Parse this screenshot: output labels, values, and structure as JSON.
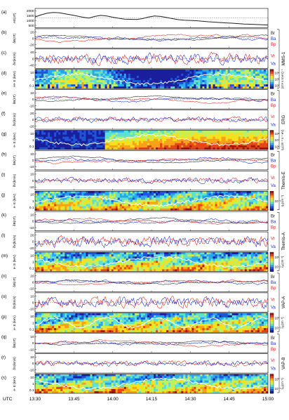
{
  "figure": {
    "x_axis": {
      "label": "UTC",
      "ticks": [
        "13:30",
        "13:45",
        "14:00",
        "14:15",
        "14:30",
        "14:45",
        "15:00"
      ],
      "range_min": [
        0,
        90
      ]
    },
    "mission_labels": [
      "MMS-1",
      "ERG",
      "Themis-E",
      "Themis-A",
      "VAP-A",
      "VAP-B"
    ],
    "colors": {
      "r": "#e8241c",
      "a": "#1c2fd8",
      "p": "#222222",
      "white": "#ffffff"
    }
  },
  "chart_data": [
    {
      "id": "a",
      "letter": "(a)",
      "type": "line",
      "ylabel": "AE(nT)",
      "yticks": [
        "2000",
        "1500",
        "1000",
        "500"
      ],
      "ylim": [
        400,
        2200
      ],
      "series": [
        {
          "name": "AE",
          "values": [
            1400,
            1600,
            1750,
            1820,
            1800,
            1700,
            1600,
            1500,
            1380,
            1300,
            1450,
            1550,
            1500,
            1380,
            1280,
            1200,
            1180,
            1160,
            1250,
            1400,
            1500,
            1450,
            1350,
            1250,
            1150,
            1100,
            1080,
            1050,
            1000,
            950,
            920,
            880,
            850,
            820,
            780,
            740,
            720,
            700,
            680,
            650
          ]
        }
      ]
    },
    {
      "id": "b",
      "letter": "(b)",
      "type": "line",
      "ylabel": "δB(nT)",
      "yticks": [
        "20",
        "0",
        "-20"
      ],
      "ylim": [
        -30,
        30
      ],
      "legend": [
        "Br",
        "Ba",
        "Bp"
      ]
    },
    {
      "id": "c",
      "letter": "(c)",
      "type": "line",
      "ylabel": "δV(km/s)",
      "yticks": [
        "40",
        "0",
        "-40"
      ],
      "ylim": [
        -60,
        60
      ],
      "legend": [
        "Vr",
        "Va"
      ]
    },
    {
      "id": "d",
      "letter": "(d)",
      "type": "heatmap",
      "ylabel": "H+ E (keV)",
      "yticks": [
        "10",
        "1",
        "0.1"
      ],
      "cbar_ticks": [
        "10⁴",
        "10³",
        "10²"
      ],
      "cbar_label": "(cm² s sr eV)⁻¹"
    },
    {
      "id": "e",
      "letter": "(e)",
      "type": "line",
      "ylabel": "δB(nT)",
      "yticks": [
        "10",
        "0",
        "-10"
      ],
      "ylim": [
        -15,
        15
      ],
      "legend": [
        "Br",
        "Ba",
        "Bp"
      ]
    },
    {
      "id": "f",
      "letter": "(f)",
      "type": "line",
      "ylabel": "δV(km/s)",
      "yticks": [
        "20",
        "0",
        "-20"
      ],
      "ylim": [
        -30,
        30
      ],
      "legend": [
        "Vr",
        "Va"
      ]
    },
    {
      "id": "g",
      "letter": "(g)",
      "type": "heatmap",
      "ylabel": "e- E (keV)",
      "yticks": [
        "10",
        "1",
        "0.1"
      ],
      "cbar_ticks": [
        "10⁸",
        "10⁷",
        "10⁶"
      ],
      "cbar_label": "η₀(cm⁻³ s⁻¹ eV)"
    },
    {
      "id": "h",
      "letter": "(h)",
      "type": "line",
      "ylabel": "δB(nT)",
      "yticks": [
        "10",
        "0",
        "-10"
      ],
      "ylim": [
        -15,
        15
      ],
      "legend": [
        "Br",
        "Ba",
        "Bp"
      ]
    },
    {
      "id": "i",
      "letter": "(i)",
      "type": "line",
      "ylabel": "δV(km/s)",
      "yticks": [
        "10",
        "0",
        "-10"
      ],
      "ylim": [
        -15,
        15
      ],
      "legend": [
        "Vr",
        "Va"
      ]
    },
    {
      "id": "j",
      "letter": "(j)",
      "type": "heatmap",
      "ylabel": "e- E (keV)",
      "yticks": [
        "10",
        "1",
        "0.1"
      ],
      "cbar_ticks": [
        "10⁻¹"
      ],
      "cbar_label": "η₀(cm⁻³)"
    },
    {
      "id": "k",
      "letter": "(k)",
      "type": "line",
      "ylabel": "δB(nT)",
      "yticks": [
        "10",
        "0",
        "-10"
      ],
      "ylim": [
        -15,
        15
      ],
      "legend": [
        "Br",
        "Ba",
        "Bp"
      ]
    },
    {
      "id": "l",
      "letter": "(l)",
      "type": "line",
      "ylabel": "δV(km/s)",
      "yticks": [
        "20",
        "0",
        "-20"
      ],
      "ylim": [
        -30,
        30
      ],
      "legend": [
        "Vr",
        "Va"
      ]
    },
    {
      "id": "m",
      "letter": "(m)",
      "type": "heatmap",
      "ylabel": "e- E (keV)",
      "yticks": [
        "10",
        "1",
        "0.1"
      ],
      "cbar_ticks": [
        "10⁰",
        "10⁻¹"
      ],
      "cbar_label": "η₀(cm⁻³)"
    },
    {
      "id": "n",
      "letter": "(n)",
      "type": "line",
      "ylabel": "δB(nT)",
      "yticks": [
        "10",
        "0",
        "-10"
      ],
      "ylim": [
        -15,
        15
      ],
      "legend": [
        "Br",
        "Ba",
        "Bp"
      ]
    },
    {
      "id": "o",
      "letter": "(o)",
      "type": "line",
      "ylabel": "δV(km/s)",
      "yticks": [
        "10",
        "0",
        "-10"
      ],
      "ylim": [
        -15,
        15
      ],
      "legend": [
        "Vr",
        "Va"
      ]
    },
    {
      "id": "p",
      "letter": "(p)",
      "type": "heatmap",
      "ylabel": "e- E (keV)",
      "yticks": [
        "10",
        "1",
        "0.1"
      ],
      "cbar_ticks": [
        "10⁰",
        "10⁻¹"
      ],
      "cbar_label": "η₀(cm⁻³)"
    },
    {
      "id": "q",
      "letter": "(q)",
      "type": "line",
      "ylabel": "δB(nT)",
      "yticks": [
        "10",
        "0",
        "-10"
      ],
      "ylim": [
        -15,
        15
      ],
      "legend": [
        "Br",
        "Ba",
        "Bp"
      ]
    },
    {
      "id": "r",
      "letter": "(r)",
      "type": "line",
      "ylabel": "δV(km/s)",
      "yticks": [
        "10",
        "0",
        "-10"
      ],
      "ylim": [
        -15,
        15
      ],
      "legend": [
        "Vr",
        "Va"
      ]
    },
    {
      "id": "s",
      "letter": "(s)",
      "type": "heatmap",
      "ylabel": "e- E (keV)",
      "yticks": [
        "10",
        "1",
        "0.1"
      ],
      "cbar_ticks": [
        "10⁰",
        "10⁻¹"
      ],
      "cbar_label": "η₀(cm⁻³)"
    }
  ]
}
